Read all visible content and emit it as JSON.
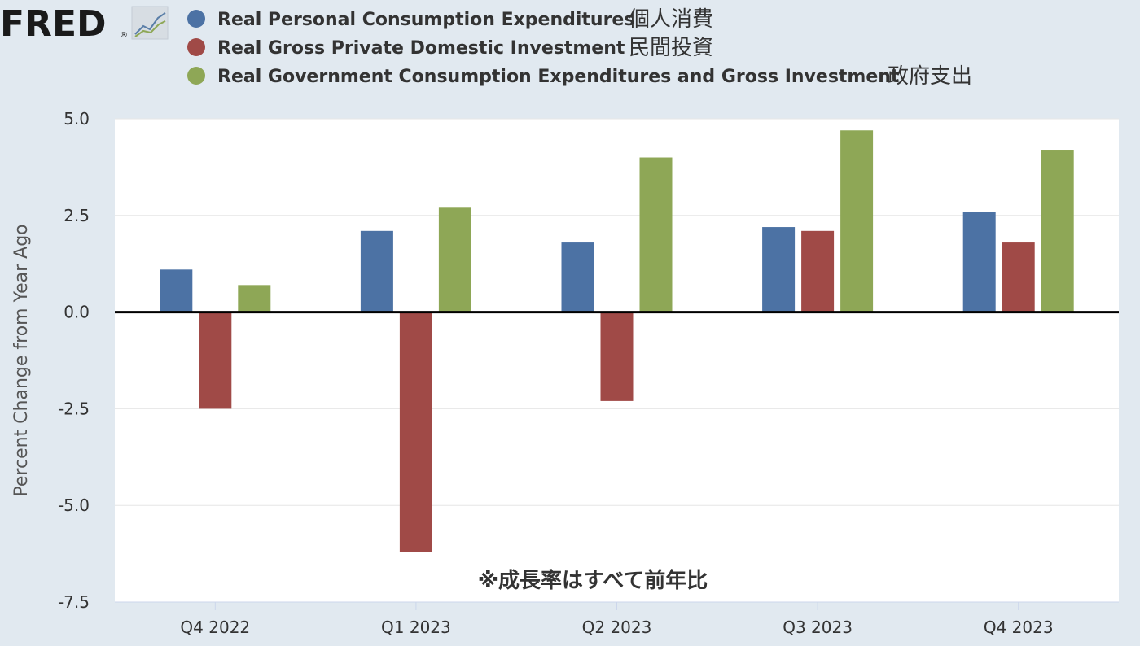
{
  "logo": {
    "text": "FRED",
    "reg": "®",
    "icon": "line-chart-icon"
  },
  "chart_data": {
    "type": "bar",
    "categories": [
      "Q4 2022",
      "Q1 2023",
      "Q2 2023",
      "Q3 2023",
      "Q4 2023"
    ],
    "series": [
      {
        "name": "Real Personal Consumption Expenditures",
        "name_jp": "個人消費",
        "color": "#4c72a4",
        "values": [
          1.1,
          2.1,
          1.8,
          2.2,
          2.6
        ]
      },
      {
        "name": "Real Gross Private Domestic Investment",
        "name_jp": "民間投資",
        "color": "#a04a47",
        "values": [
          -2.5,
          -6.2,
          -2.3,
          2.1,
          1.8
        ]
      },
      {
        "name": "Real Government Consumption Expenditures and Gross Investment",
        "name_jp": "政府支出",
        "color": "#8ea756",
        "values": [
          0.7,
          2.7,
          4.0,
          4.7,
          4.2
        ]
      }
    ],
    "ylabel": "Percent Change from Year Ago",
    "ylim": [
      -7.5,
      5.0
    ],
    "yticks": [
      5.0,
      2.5,
      0.0,
      -2.5,
      -5.0,
      -7.5
    ],
    "ytick_labels": [
      "5.0",
      "2.5",
      "0.0",
      "-2.5",
      "-5.0",
      "-7.5"
    ],
    "annotation": "※成長率はすべて前年比",
    "grid": true,
    "legend": "top-left"
  }
}
